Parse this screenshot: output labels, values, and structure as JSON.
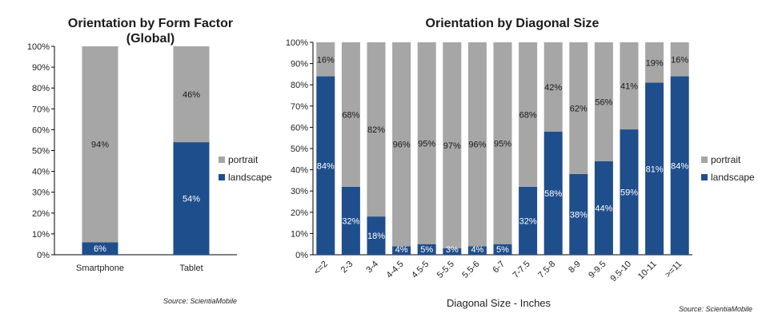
{
  "colors": {
    "portrait": "#a6a6a6",
    "landscape": "#1f4e8c",
    "axis": "#000000"
  },
  "chart_data": [
    {
      "type": "bar",
      "stacked": true,
      "title": "Orientation by Form Factor (Global)",
      "title_lines": [
        "Orientation by Form Factor",
        "(Global)"
      ],
      "categories": [
        "Smartphone",
        "Tablet"
      ],
      "series": [
        {
          "name": "landscape",
          "values": [
            6,
            54
          ],
          "labels": [
            "6%",
            "54%"
          ]
        },
        {
          "name": "portrait",
          "values": [
            94,
            46
          ],
          "labels": [
            "94%",
            "46%"
          ]
        }
      ],
      "ylim": [
        0,
        100
      ],
      "yticks": [
        "0%",
        "10%",
        "20%",
        "30%",
        "40%",
        "50%",
        "60%",
        "70%",
        "80%",
        "90%",
        "100%"
      ],
      "xlabel": "",
      "ylabel": "",
      "legend": [
        "portrait",
        "landscape"
      ],
      "legend_position": "right",
      "grid": false,
      "source": "Source: ScientiaMobile"
    },
    {
      "type": "bar",
      "stacked": true,
      "title": "Orientation by Diagonal Size",
      "categories": [
        "<=2",
        "2-3",
        "3-4",
        "4-4.5",
        "4.5-5",
        "5-5.5",
        "5.5-6",
        "6-7",
        "7-7.5",
        "7.5-8",
        "8-9",
        "9-9.5",
        "9.5-10",
        "10-11",
        ">=11"
      ],
      "series": [
        {
          "name": "landscape",
          "values": [
            84,
            32,
            18,
            4,
            5,
            3,
            4,
            5,
            32,
            58,
            38,
            44,
            59,
            81,
            84
          ],
          "labels": [
            "84%",
            "32%",
            "18%",
            "4%",
            "5%",
            "3%",
            "4%",
            "5%",
            "32%",
            "58%",
            "38%",
            "44%",
            "59%",
            "81%",
            "84%"
          ]
        },
        {
          "name": "portrait",
          "values": [
            16,
            68,
            82,
            96,
            95,
            97,
            96,
            95,
            68,
            42,
            62,
            56,
            41,
            19,
            16
          ],
          "labels": [
            "16%",
            "68%",
            "82%",
            "96%",
            "95%",
            "97%",
            "96%",
            "95%",
            "68%",
            "42%",
            "62%",
            "56%",
            "41%",
            "19%",
            "16%"
          ]
        }
      ],
      "ylim": [
        0,
        100
      ],
      "yticks": [
        "0%",
        "10%",
        "20%",
        "30%",
        "40%",
        "50%",
        "60%",
        "70%",
        "80%",
        "90%",
        "100%"
      ],
      "xlabel": "Diagonal Size - Inches",
      "ylabel": "",
      "legend": [
        "portrait",
        "landscape"
      ],
      "legend_position": "right",
      "grid": false,
      "source": "Source: ScientiaMobile"
    }
  ]
}
